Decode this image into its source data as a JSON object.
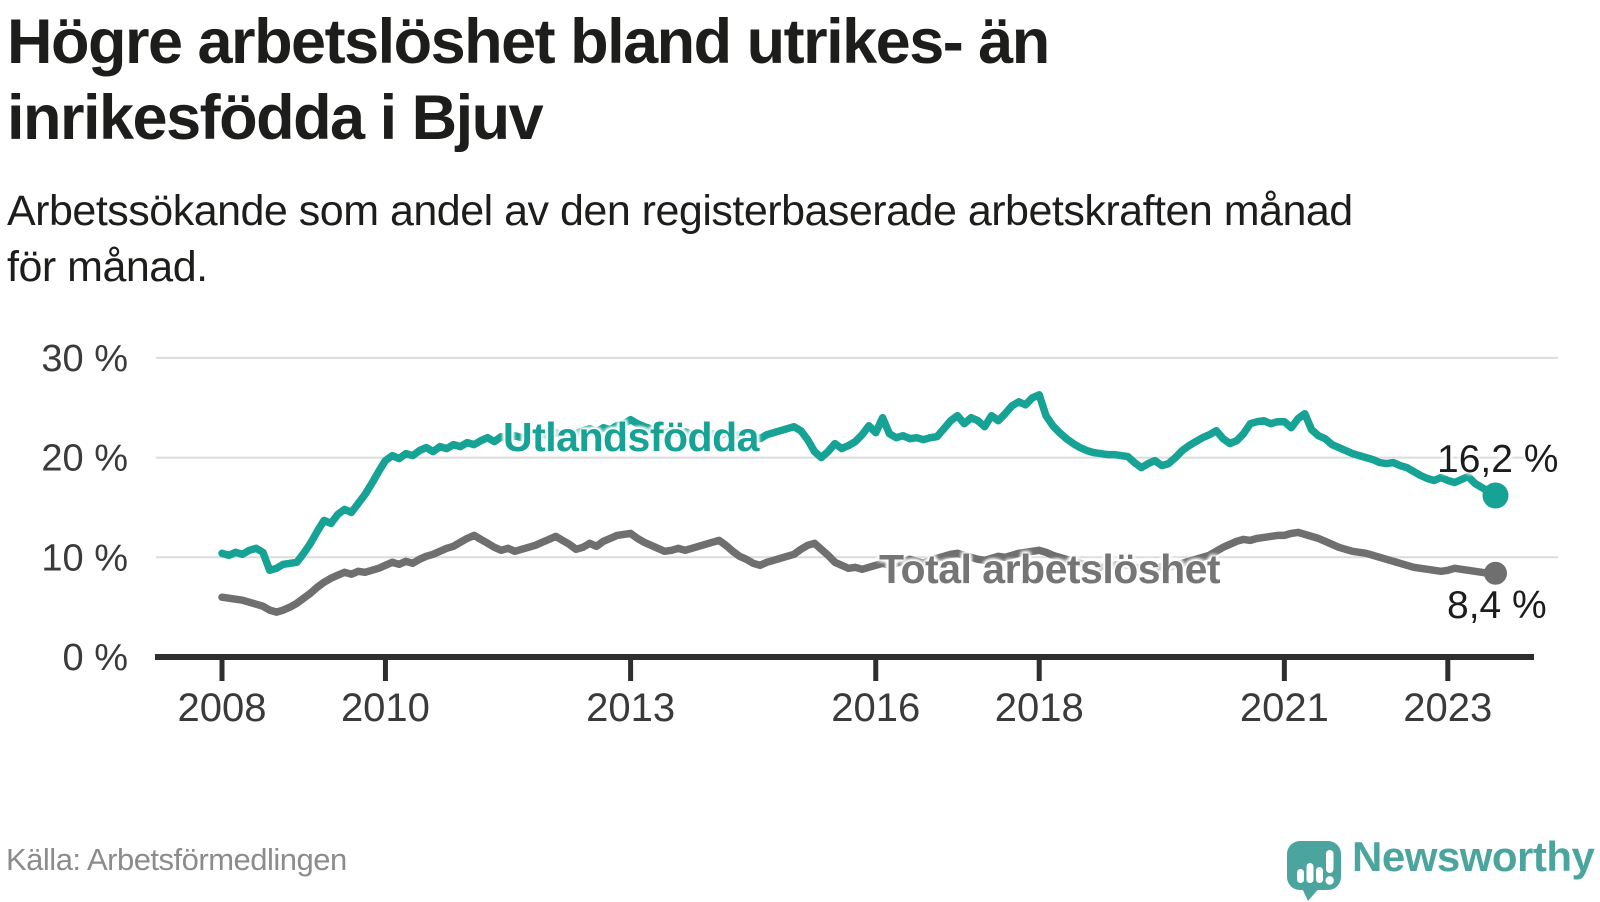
{
  "header": {
    "title_lines": [
      "Högre arbetslöshet bland utrikes- än",
      "inrikesfödda i Bjuv"
    ],
    "subtitle_lines": [
      "Arbetssökande som andel av den registerbaserade arbetskraften månad",
      "för månad."
    ]
  },
  "footer": {
    "source": "Källa: Arbetsförmedlingen",
    "brand": "Newsworthy"
  },
  "colors": {
    "accent_teal": "#16a294",
    "logo_teal": "#4ba59e",
    "line_gray": "#6f6f6f",
    "grid": "#dcdcdc",
    "axis": "#2e2e2e",
    "text_dark": "#1d1d1b",
    "text_muted": "#8c8c8c"
  },
  "chart_data": {
    "type": "line",
    "title": "Högre arbetslöshet bland utrikes- än inrikesfödda i Bjuv",
    "subtitle": "Arbetssökande som andel av den registerbaserade arbetskraften månad för månad.",
    "x_start": {
      "year": 2008,
      "month": 1
    },
    "x_end": {
      "year": 2023,
      "month": 8
    },
    "x_frequency": "monthly",
    "x_tick_years": [
      2008,
      2010,
      2013,
      2016,
      2018,
      2021,
      2023
    ],
    "y_ticks": [
      "0 %",
      "10 %",
      "20 %",
      "30 %"
    ],
    "y_tick_values": [
      0,
      10,
      20,
      30
    ],
    "ylim": [
      0,
      30
    ],
    "grid": true,
    "legend_position": "inline-on-line",
    "series": [
      {
        "name": "Utlandsfödda",
        "color": "#16a294",
        "end_label": "16,2 %",
        "end_value": 16.2,
        "values": [
          10.4,
          10.2,
          10.5,
          10.3,
          10.7,
          10.9,
          10.5,
          8.7,
          8.9,
          9.3,
          9.4,
          9.5,
          10.4,
          11.4,
          12.6,
          13.7,
          13.4,
          14.3,
          14.8,
          14.5,
          15.4,
          16.3,
          17.4,
          18.6,
          19.7,
          20.2,
          19.9,
          20.4,
          20.2,
          20.7,
          21.0,
          20.6,
          21.1,
          20.9,
          21.3,
          21.1,
          21.5,
          21.3,
          21.7,
          22.0,
          21.6,
          22.1,
          21.9,
          22.2,
          22.0,
          22.3,
          22.1,
          22.4,
          22.2,
          22.5,
          22.3,
          22.6,
          22.4,
          22.7,
          22.9,
          22.6,
          23.0,
          22.8,
          23.2,
          23.4,
          23.8,
          23.4,
          23.1,
          22.9,
          22.7,
          22.5,
          22.7,
          22.4,
          22.6,
          22.3,
          22.5,
          22.2,
          22.4,
          22.2,
          22.4,
          22.1,
          22.3,
          22.0,
          22.2,
          21.9,
          22.3,
          22.5,
          22.7,
          22.9,
          23.1,
          22.7,
          21.8,
          20.6,
          20.0,
          20.6,
          21.4,
          20.9,
          21.2,
          21.6,
          22.3,
          23.2,
          22.5,
          24.0,
          22.4,
          22.0,
          22.2,
          21.9,
          22.0,
          21.8,
          22.0,
          22.1,
          22.9,
          23.7,
          24.2,
          23.4,
          24.0,
          23.7,
          23.1,
          24.2,
          23.7,
          24.4,
          25.2,
          25.6,
          25.3,
          26.0,
          26.3,
          24.2,
          23.2,
          22.5,
          21.9,
          21.4,
          21.0,
          20.7,
          20.5,
          20.4,
          20.3,
          20.3,
          20.2,
          20.1,
          19.5,
          19.0,
          19.4,
          19.7,
          19.2,
          19.4,
          20.0,
          20.7,
          21.2,
          21.6,
          22.0,
          22.3,
          22.7,
          21.9,
          21.4,
          21.7,
          22.4,
          23.4,
          23.6,
          23.7,
          23.4,
          23.6,
          23.6,
          23.0,
          23.9,
          24.4,
          22.8,
          22.2,
          21.9,
          21.3,
          21.0,
          20.7,
          20.4,
          20.2,
          20.0,
          19.8,
          19.5,
          19.4,
          19.5,
          19.2,
          19.0,
          18.6,
          18.2,
          17.9,
          17.7,
          18.0,
          17.7,
          17.5,
          17.8,
          18.1,
          17.4,
          17.0,
          16.6,
          16.2
        ]
      },
      {
        "name": "Total arbetslöshet",
        "color": "#6f6f6f",
        "end_label": "8,4 %",
        "end_value": 8.4,
        "values": [
          6.0,
          5.9,
          5.8,
          5.7,
          5.5,
          5.3,
          5.1,
          4.7,
          4.5,
          4.7,
          5.0,
          5.4,
          5.9,
          6.4,
          7.0,
          7.5,
          7.9,
          8.2,
          8.5,
          8.3,
          8.6,
          8.5,
          8.7,
          8.9,
          9.2,
          9.5,
          9.3,
          9.6,
          9.4,
          9.8,
          10.1,
          10.3,
          10.6,
          10.9,
          11.1,
          11.5,
          11.9,
          12.2,
          11.8,
          11.4,
          11.0,
          10.7,
          10.9,
          10.6,
          10.8,
          11.0,
          11.2,
          11.5,
          11.8,
          12.1,
          11.7,
          11.3,
          10.8,
          11.0,
          11.4,
          11.1,
          11.6,
          11.9,
          12.2,
          12.3,
          12.4,
          11.9,
          11.5,
          11.2,
          10.9,
          10.6,
          10.7,
          10.9,
          10.7,
          10.9,
          11.1,
          11.3,
          11.5,
          11.7,
          11.2,
          10.6,
          10.1,
          9.8,
          9.4,
          9.2,
          9.5,
          9.7,
          9.9,
          10.1,
          10.3,
          10.8,
          11.2,
          11.4,
          10.8,
          10.2,
          9.5,
          9.2,
          8.9,
          9.0,
          8.8,
          9.0,
          9.2,
          9.4,
          9.2,
          9.4,
          9.6,
          9.8,
          9.6,
          9.4,
          9.7,
          9.9,
          10.1,
          10.3,
          10.4,
          10.2,
          10.0,
          9.8,
          9.7,
          9.9,
          10.1,
          10.0,
          10.2,
          10.4,
          10.5,
          10.6,
          10.7,
          10.5,
          10.2,
          10.0,
          9.8,
          9.6,
          9.4,
          9.2,
          9.1,
          9.0,
          9.1,
          9.2,
          9.3,
          9.2,
          9.0,
          8.9,
          8.8,
          8.9,
          9.1,
          9.0,
          9.2,
          9.4,
          9.6,
          9.8,
          10.0,
          10.2,
          10.6,
          11.0,
          11.3,
          11.6,
          11.8,
          11.7,
          11.9,
          12.0,
          12.1,
          12.2,
          12.2,
          12.4,
          12.5,
          12.3,
          12.1,
          11.9,
          11.6,
          11.3,
          11.0,
          10.8,
          10.6,
          10.5,
          10.4,
          10.2,
          10.0,
          9.8,
          9.6,
          9.4,
          9.2,
          9.0,
          8.9,
          8.8,
          8.7,
          8.6,
          8.7,
          8.9,
          8.8,
          8.7,
          8.6,
          8.5,
          8.4,
          8.4
        ]
      }
    ]
  }
}
